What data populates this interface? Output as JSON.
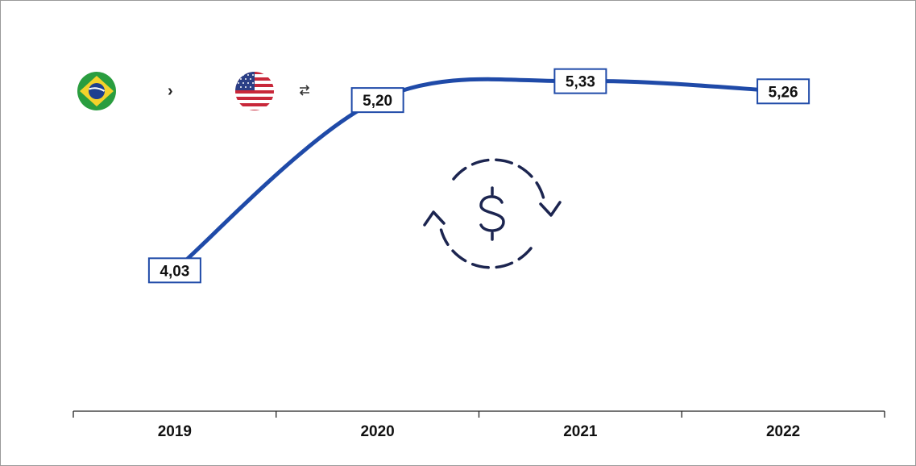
{
  "chart_data": {
    "type": "line",
    "categories": [
      "2019",
      "2020",
      "2021",
      "2022"
    ],
    "values": [
      4.03,
      5.2,
      5.33,
      5.26
    ],
    "value_labels": [
      "4,03",
      "5,20",
      "5,33",
      "5,26"
    ],
    "ylim": [
      3.5,
      5.45
    ],
    "grid": false,
    "line_color": "#1f4aa8"
  },
  "currency_pair": {
    "from_icon": "brazil-flag-icon",
    "to_icon": "usa-flag-icon",
    "separator_icon": "chevron-right-icon",
    "swap_icon": "swap-arrows-icon"
  },
  "center_icon": "dollar-exchange-icon"
}
